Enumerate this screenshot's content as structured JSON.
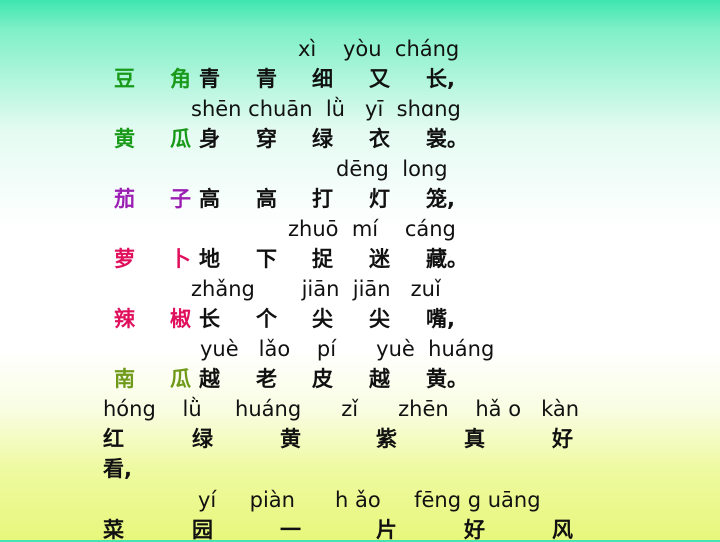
{
  "poem": [
    {
      "pinyin": "xì    yòu  cháng",
      "veg1": "豆",
      "veg2": "角",
      "color": "#1a9a1a",
      "chars": [
        "青",
        "青",
        "细",
        "又",
        "长,"
      ]
    },
    {
      "pinyin": "shēn chuān  lǜ   yī  shɑng",
      "veg1": "黄",
      "veg2": "瓜",
      "color": "#1a9a1a",
      "chars": [
        "身",
        "穿",
        "绿",
        "衣",
        "裳。"
      ]
    },
    {
      "pinyin": "dēng  long",
      "veg1": "茄",
      "veg2": "子",
      "color": "#9b1fb3",
      "chars": [
        "高",
        "高",
        "打",
        "灯",
        "笼,"
      ]
    },
    {
      "pinyin": "zhuō  mí    cáng",
      "veg1": "萝",
      "veg2": "卜",
      "color": "#e0105d",
      "chars": [
        "地",
        "下",
        "捉",
        "迷",
        "藏。"
      ]
    },
    {
      "pinyin": "zhǎng       jiān  jiān   zuǐ",
      "veg1": "辣",
      "veg2": "椒",
      "color": "#e0105d",
      "chars": [
        "长",
        "个",
        "尖",
        "尖",
        "嘴,"
      ]
    },
    {
      "pinyin": "yuè   lǎo    pí      yuè  huáng",
      "veg1": "南",
      "veg2": "瓜",
      "color": "#6f9a1a",
      "chars": [
        "越",
        "老",
        "皮",
        "越",
        "黄。"
      ]
    }
  ],
  "closing": {
    "pinyin1": "hóng    lǜ     huáng      zǐ      zhēn    hǎ o   kàn",
    "chars1": [
      "红",
      "绿",
      "黄",
      "紫",
      "真",
      "好"
    ],
    "wrap1": "看,",
    "pinyin2": "yí     piàn      h ǎo     fēng g uāng",
    "chars2": [
      "菜",
      "园",
      "一",
      "片",
      "好",
      "风"
    ]
  }
}
